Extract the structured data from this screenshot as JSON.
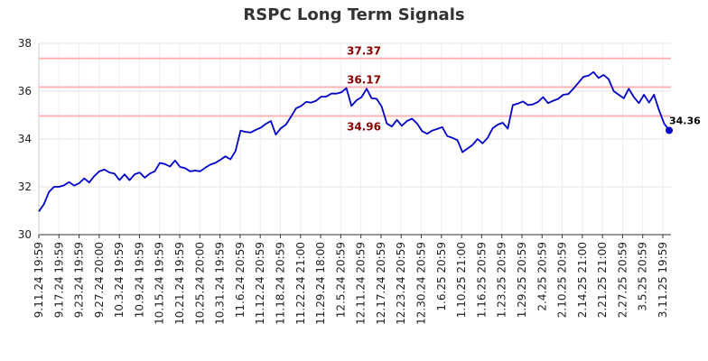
{
  "chart_data": {
    "type": "line",
    "title": "RSPC Long Term Signals",
    "xlabel": "",
    "ylabel": "",
    "ylim": [
      30,
      38
    ],
    "yticks": [
      30,
      32,
      34,
      36,
      38
    ],
    "grid": true,
    "xtick_labels": [
      "9.11.24 19:59",
      "9.17.24 19:59",
      "9.23.24 19:59",
      "9.27.24 20:00",
      "10.3.24 19:59",
      "10.9.24 19:59",
      "10.15.24 19:59",
      "10.21.24 19:59",
      "10.25.24 20:00",
      "10.31.24 19:59",
      "11.6.24 20:59",
      "11.12.24 20:59",
      "11.18.24 20:59",
      "11.22.24 21:00",
      "11.29.24 18:00",
      "12.5.24 20:59",
      "12.11.24 20:59",
      "12.17.24 20:59",
      "12.23.24 20:59",
      "12.30.24 20:59",
      "1.6.25 20:59",
      "1.10.25 21:00",
      "1.16.25 20:59",
      "1.23.25 20:59",
      "1.29.25 20:59",
      "2.4.25 20:59",
      "2.10.25 20:59",
      "2.14.25 21:00",
      "2.21.25 21:00",
      "2.27.25 20:59",
      "3.5.25 20:59",
      "3.11.25 19:59"
    ],
    "reference_lines": [
      {
        "label": "37.37",
        "value": 37.37,
        "color": "#ffb3b3"
      },
      {
        "label": "36.17",
        "value": 36.17,
        "color": "#ffb3b3"
      },
      {
        "label": "34.96",
        "value": 34.96,
        "color": "#ffb3b3"
      }
    ],
    "last_value_label": "34.36",
    "series": [
      {
        "color": "#0000cc",
        "values": [
          30.97,
          31.27,
          31.78,
          32.0,
          32.0,
          32.06,
          32.2,
          32.05,
          32.15,
          32.35,
          32.18,
          32.45,
          32.65,
          32.72,
          32.6,
          32.55,
          32.28,
          32.52,
          32.28,
          32.52,
          32.6,
          32.38,
          32.55,
          32.65,
          33.0,
          32.95,
          32.85,
          33.1,
          32.83,
          32.78,
          32.65,
          32.68,
          32.65,
          32.8,
          32.93,
          33.0,
          33.13,
          33.27,
          33.15,
          33.5,
          34.35,
          34.3,
          34.27,
          34.38,
          34.47,
          34.63,
          34.75,
          34.18,
          34.45,
          34.6,
          34.93,
          35.28,
          35.38,
          35.55,
          35.52,
          35.6,
          35.77,
          35.77,
          35.9,
          35.9,
          35.95,
          36.13,
          35.38,
          35.62,
          35.75,
          36.1,
          35.7,
          35.68,
          35.35,
          34.65,
          34.52,
          34.8,
          34.55,
          34.75,
          34.85,
          34.65,
          34.33,
          34.22,
          34.35,
          34.42,
          34.5,
          34.12,
          34.05,
          33.95,
          33.45,
          33.6,
          33.75,
          34.0,
          33.82,
          34.05,
          34.45,
          34.6,
          34.68,
          34.43,
          35.42,
          35.48,
          35.57,
          35.42,
          35.45,
          35.55,
          35.75,
          35.5,
          35.6,
          35.68,
          35.85,
          35.88,
          36.1,
          36.35,
          36.6,
          36.65,
          36.8,
          36.55,
          36.68,
          36.5,
          36.0,
          35.85,
          35.7,
          36.1,
          35.75,
          35.5,
          35.85,
          35.52,
          35.85,
          35.2,
          34.65,
          34.36
        ]
      }
    ]
  }
}
